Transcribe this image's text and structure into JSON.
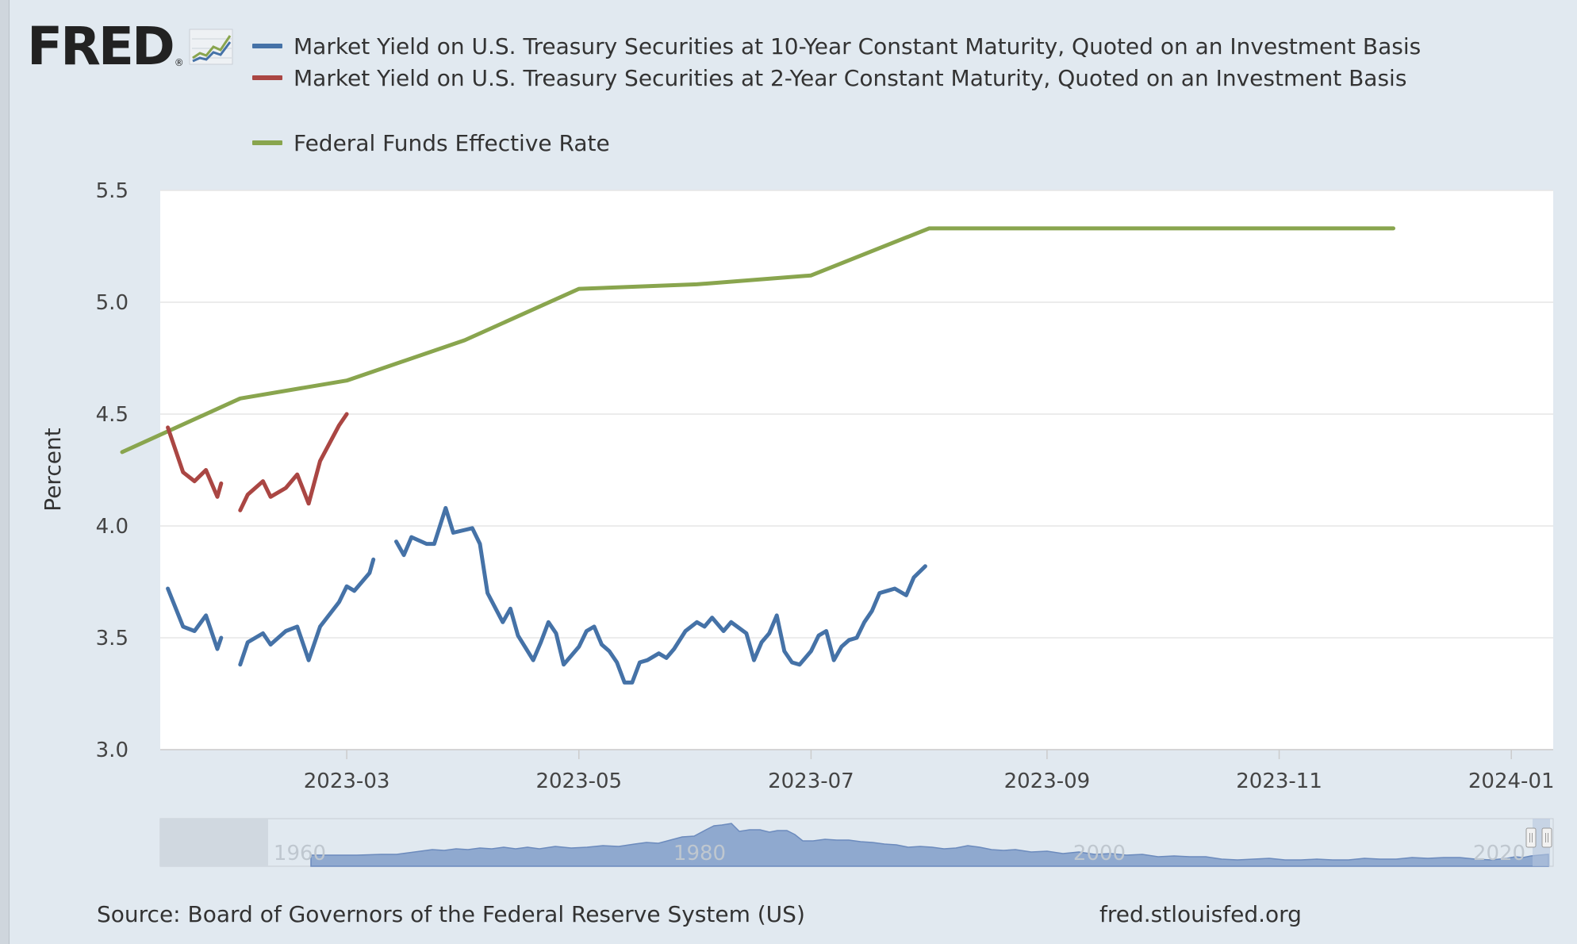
{
  "header": {
    "logo_text": "FRED",
    "logo_mark": "®"
  },
  "colors": {
    "series_10y": "#4572a7",
    "series_2y": "#aa4643",
    "series_ffr": "#89a54e",
    "plot_bg": "#ffffff",
    "page_bg": "#e1e9f0",
    "navigator_fill": "#8fa9cf"
  },
  "icons": {
    "logo_graph": "line-chart-icon",
    "scroll_handles": "scroll-handle-icon"
  },
  "chart_data": {
    "type": "line",
    "ylabel": "Percent",
    "ylim": [
      3.0,
      5.5
    ],
    "yticks": [
      "3.0",
      "3.5",
      "4.0",
      "4.5",
      "5.0",
      "5.5"
    ],
    "xticks": [
      "2023-03",
      "2023-05",
      "2023-07",
      "2023-09",
      "2023-11",
      "2024-01"
    ],
    "grid": true,
    "legend_position": "top",
    "series": [
      {
        "name": "Market Yield on U.S. Treasury Securities at 10-Year Constant Maturity, Quoted on an Investment Basis",
        "color": "#4572a7",
        "segments": [
          [
            [
              "2023-01-13",
              3.72
            ],
            [
              "2023-01-17",
              3.55
            ],
            [
              "2023-01-20",
              3.53
            ],
            [
              "2023-01-23",
              3.6
            ],
            [
              "2023-01-26",
              3.45
            ],
            [
              "2023-01-27",
              3.5
            ]
          ],
          [
            [
              "2023-02-01",
              3.38
            ],
            [
              "2023-02-03",
              3.48
            ],
            [
              "2023-02-07",
              3.52
            ],
            [
              "2023-02-09",
              3.47
            ],
            [
              "2023-02-13",
              3.53
            ],
            [
              "2023-02-16",
              3.55
            ],
            [
              "2023-02-19",
              3.4
            ],
            [
              "2023-02-22",
              3.55
            ],
            [
              "2023-02-27",
              3.66
            ],
            [
              "2023-03-01",
              3.73
            ],
            [
              "2023-03-03",
              3.71
            ],
            [
              "2023-03-07",
              3.79
            ],
            [
              "2023-03-08",
              3.85
            ]
          ],
          [
            [
              "2023-03-14",
              3.93
            ],
            [
              "2023-03-16",
              3.87
            ],
            [
              "2023-03-18",
              3.95
            ],
            [
              "2023-03-22",
              3.92
            ],
            [
              "2023-03-24",
              3.92
            ],
            [
              "2023-03-27",
              4.08
            ],
            [
              "2023-03-29",
              3.97
            ],
            [
              "2023-04-03",
              3.99
            ],
            [
              "2023-04-05",
              3.92
            ],
            [
              "2023-04-07",
              3.7
            ],
            [
              "2023-04-11",
              3.57
            ],
            [
              "2023-04-13",
              3.63
            ],
            [
              "2023-04-15",
              3.51
            ],
            [
              "2023-04-19",
              3.4
            ],
            [
              "2023-04-21",
              3.48
            ],
            [
              "2023-04-23",
              3.57
            ],
            [
              "2023-04-25",
              3.52
            ],
            [
              "2023-04-27",
              3.38
            ],
            [
              "2023-05-01",
              3.46
            ],
            [
              "2023-05-03",
              3.53
            ],
            [
              "2023-05-05",
              3.55
            ],
            [
              "2023-05-07",
              3.47
            ],
            [
              "2023-05-09",
              3.44
            ],
            [
              "2023-05-11",
              3.39
            ],
            [
              "2023-05-13",
              3.3
            ],
            [
              "2023-05-15",
              3.3
            ],
            [
              "2023-05-17",
              3.39
            ],
            [
              "2023-05-19",
              3.4
            ],
            [
              "2023-05-22",
              3.43
            ],
            [
              "2023-05-24",
              3.41
            ],
            [
              "2023-05-26",
              3.45
            ],
            [
              "2023-05-29",
              3.53
            ],
            [
              "2023-06-01",
              3.57
            ],
            [
              "2023-06-03",
              3.55
            ],
            [
              "2023-06-05",
              3.59
            ],
            [
              "2023-06-08",
              3.53
            ],
            [
              "2023-06-10",
              3.57
            ],
            [
              "2023-06-14",
              3.52
            ],
            [
              "2023-06-16",
              3.4
            ],
            [
              "2023-06-18",
              3.48
            ],
            [
              "2023-06-20",
              3.52
            ],
            [
              "2023-06-22",
              3.6
            ],
            [
              "2023-06-24",
              3.44
            ],
            [
              "2023-06-26",
              3.39
            ],
            [
              "2023-06-28",
              3.38
            ],
            [
              "2023-07-01",
              3.44
            ],
            [
              "2023-07-03",
              3.51
            ],
            [
              "2023-07-05",
              3.53
            ],
            [
              "2023-07-07",
              3.4
            ],
            [
              "2023-07-09",
              3.46
            ],
            [
              "2023-07-11",
              3.49
            ],
            [
              "2023-07-13",
              3.5
            ],
            [
              "2023-07-15",
              3.57
            ],
            [
              "2023-07-17",
              3.62
            ],
            [
              "2023-07-19",
              3.7
            ],
            [
              "2023-07-21",
              3.71
            ],
            [
              "2023-07-23",
              3.72
            ],
            [
              "2023-07-26",
              3.69
            ],
            [
              "2023-07-28",
              3.77
            ],
            [
              "2023-07-31",
              3.82
            ]
          ]
        ]
      },
      {
        "name": "Market Yield on U.S. Treasury Securities at 2-Year Constant Maturity, Quoted on an Investment Basis",
        "color": "#aa4643",
        "segments": [
          [
            [
              "2023-01-13",
              4.44
            ],
            [
              "2023-01-17",
              4.24
            ],
            [
              "2023-01-20",
              4.2
            ],
            [
              "2023-01-23",
              4.25
            ],
            [
              "2023-01-26",
              4.13
            ],
            [
              "2023-01-27",
              4.19
            ]
          ],
          [
            [
              "2023-02-01",
              4.07
            ],
            [
              "2023-02-03",
              4.14
            ],
            [
              "2023-02-07",
              4.2
            ],
            [
              "2023-02-09",
              4.13
            ],
            [
              "2023-02-13",
              4.17
            ],
            [
              "2023-02-16",
              4.23
            ],
            [
              "2023-02-19",
              4.1
            ],
            [
              "2023-02-22",
              4.29
            ],
            [
              "2023-02-27",
              4.45
            ],
            [
              "2023-03-01",
              4.5
            ]
          ]
        ]
      },
      {
        "name": "Federal Funds Effective Rate",
        "color": "#89a54e",
        "segments": [
          [
            [
              "2023-01-01",
              4.33
            ],
            [
              "2023-02-01",
              4.57
            ],
            [
              "2023-03-01",
              4.65
            ],
            [
              "2023-04-01",
              4.83
            ],
            [
              "2023-05-01",
              5.06
            ],
            [
              "2023-06-01",
              5.08
            ],
            [
              "2023-07-01",
              5.12
            ],
            [
              "2023-08-01",
              5.33
            ],
            [
              "2023-09-01",
              5.33
            ],
            [
              "2023-10-01",
              5.33
            ],
            [
              "2023-11-01",
              5.33
            ],
            [
              "2023-12-01",
              5.33
            ]
          ]
        ]
      }
    ],
    "navigator_ticks": [
      "1960",
      "1980",
      "2000",
      "2020"
    ]
  },
  "footer": {
    "source": "Source: Board of Governors of the Federal Reserve System (US)",
    "url": "fred.stlouisfed.org"
  }
}
